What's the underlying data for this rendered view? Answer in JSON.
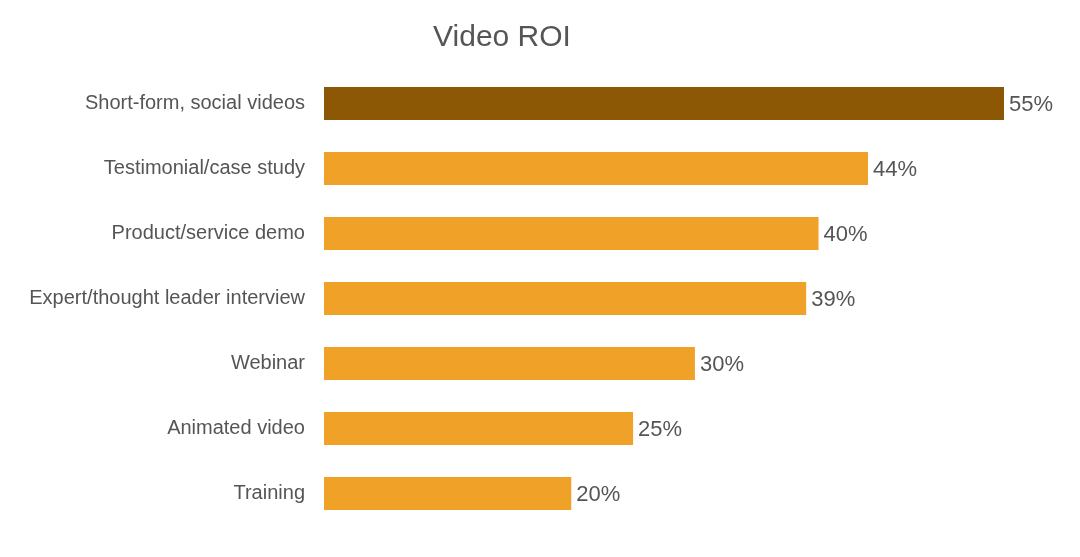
{
  "chart_data": {
    "type": "bar",
    "orientation": "horizontal",
    "title": "Video ROI",
    "categories": [
      "Short-form, social videos",
      "Testimonial/case study",
      "Product/service demo",
      "Expert/thought leader interview",
      "Webinar",
      "Animated video",
      "Training"
    ],
    "values": [
      55,
      44,
      40,
      39,
      30,
      25,
      20
    ],
    "colors": [
      "#8c5806",
      "#f0a128",
      "#f0a128",
      "#f0a128",
      "#f0a128",
      "#f0a128",
      "#f0a128"
    ],
    "value_labels": [
      "55%",
      "44%",
      "40%",
      "39%",
      "30%",
      "25%",
      "20%"
    ],
    "tick_labels": "y"
  }
}
